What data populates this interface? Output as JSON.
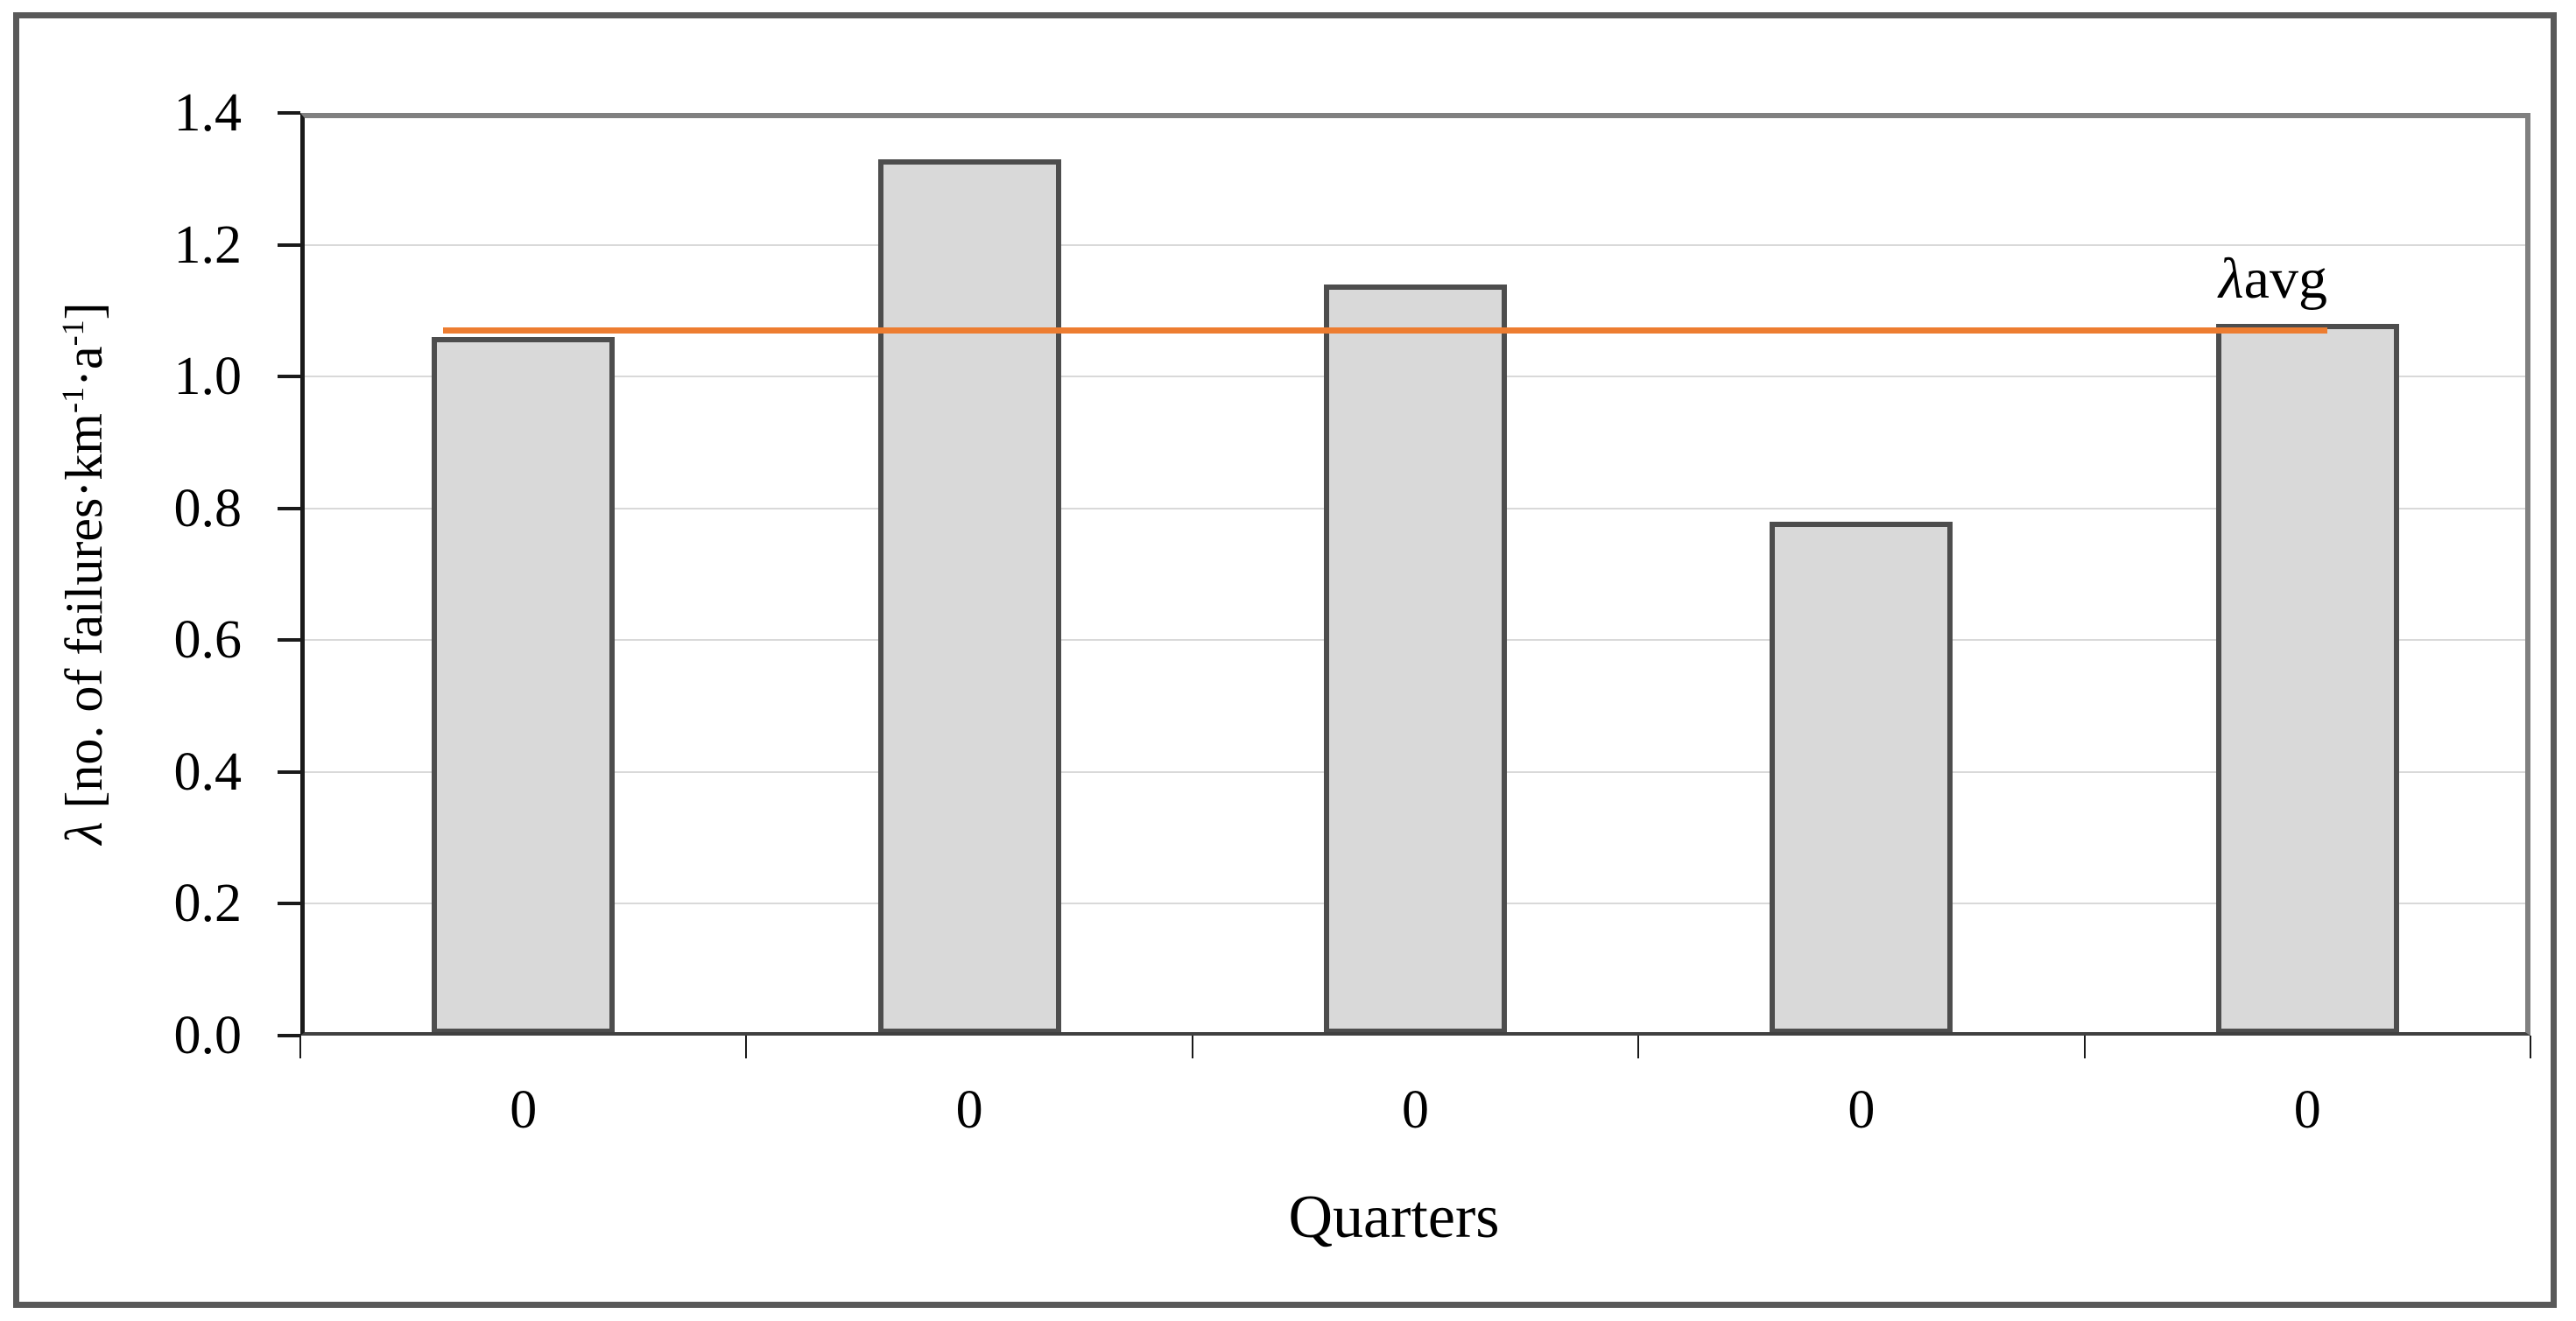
{
  "chart_data": {
    "type": "bar",
    "title": "",
    "categories": [
      "0",
      "0",
      "0",
      "0",
      "0"
    ],
    "values": [
      1.06,
      1.33,
      1.14,
      0.78,
      1.08
    ],
    "xlabel": "Quarters",
    "ylabel": "λ [no. of failures·km-1·a-1]",
    "ylabel_parts": {
      "lambda": "λ",
      "prefix": " [no. of failures·km",
      "sup1": "-1",
      "mid": "·a",
      "sup2": "-1",
      "suffix": "]"
    },
    "yticks": [
      0.0,
      0.2,
      0.4,
      0.6,
      0.8,
      1.0,
      1.2,
      1.4
    ],
    "ytick_labels": [
      "0.0",
      "0.2",
      "0.4",
      "0.6",
      "0.8",
      "1.0",
      "1.2",
      "1.4"
    ],
    "ylim": [
      0,
      1.4
    ],
    "grid": true,
    "legend_position": "none",
    "avg_line": {
      "value": 1.07,
      "label_lambda": "λ",
      "label_text": "avg"
    },
    "colors": {
      "bar_fill": "#d9d9d9",
      "bar_border": "#4d4d4d",
      "avg_line": "#ed7d31",
      "gridline": "#d9d9d9",
      "axis": "#1a1a1a",
      "plot_border_gray": "#808080",
      "figure_border": "#595959"
    }
  }
}
